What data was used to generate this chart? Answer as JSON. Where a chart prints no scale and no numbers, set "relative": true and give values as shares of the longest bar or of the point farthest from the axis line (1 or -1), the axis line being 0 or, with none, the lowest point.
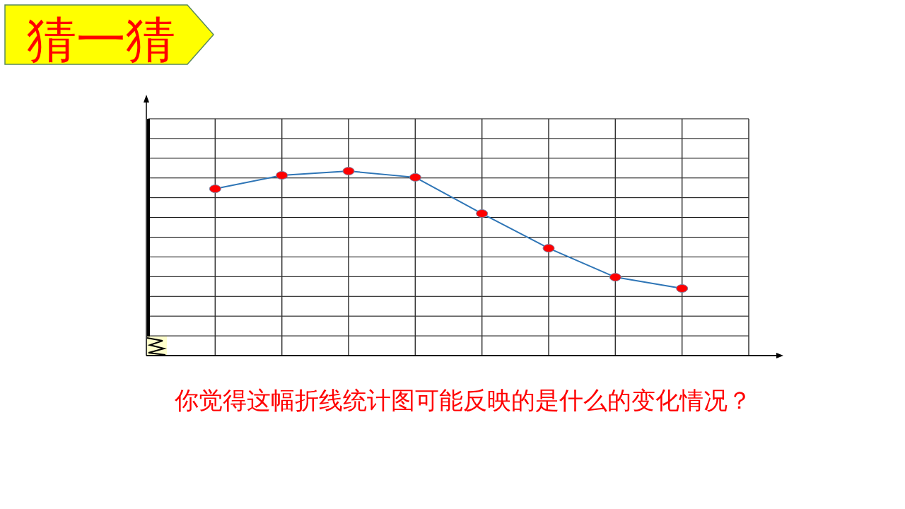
{
  "chart_data": {
    "type": "line",
    "title": "猜一猜",
    "relative": true,
    "grid": true,
    "marker": "circle",
    "line_style": "solid",
    "categories": [
      null,
      null,
      null,
      null,
      null,
      null,
      null,
      null
    ],
    "series": [
      {
        "color": "#2e75b6",
        "values": [
          0.904,
          0.977,
          1,
          0.966,
          0.77,
          0.582,
          0.425,
          0.364
        ]
      }
    ],
    "annotations": [
      "你觉得这幅折线统计图可能反映的是什么的变化情况？"
    ]
  }
}
